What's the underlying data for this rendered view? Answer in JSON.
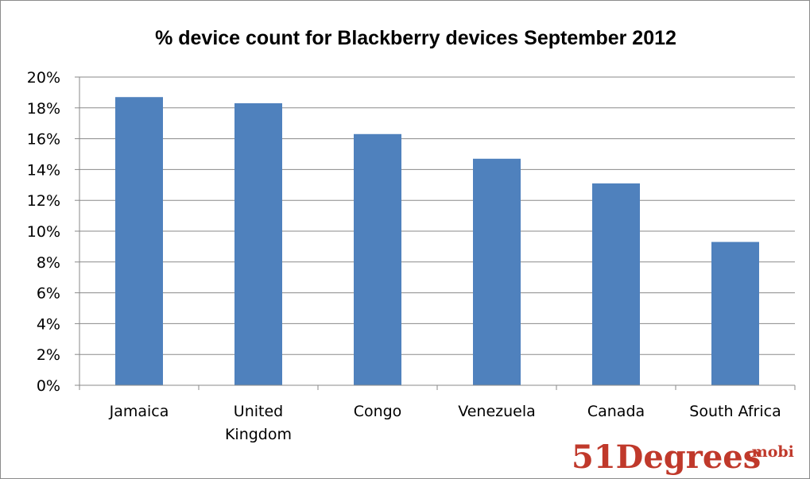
{
  "chart_data": {
    "type": "bar",
    "title": "%  device count for Blackberry devices September 2012",
    "categories": [
      "Jamaica",
      "United Kingdom",
      "Congo",
      "Venezuela",
      "Canada",
      "South Africa"
    ],
    "category_lines": [
      [
        "Jamaica"
      ],
      [
        "United",
        "Kingdom"
      ],
      [
        "Congo"
      ],
      [
        "Venezuela"
      ],
      [
        "Canada"
      ],
      [
        "South Africa"
      ]
    ],
    "values": [
      18.7,
      18.3,
      16.3,
      14.7,
      13.1,
      9.3
    ],
    "ylim": [
      0,
      20
    ],
    "yticks": [
      0,
      2,
      4,
      6,
      8,
      10,
      12,
      14,
      16,
      18,
      20
    ],
    "ytick_labels": [
      "0%",
      "2%",
      "4%",
      "6%",
      "8%",
      "10%",
      "12%",
      "14%",
      "16%",
      "18%",
      "20%"
    ],
    "xlabel": "",
    "ylabel": "",
    "grid": true,
    "legend": "none",
    "bar_color": "#4f81bd"
  },
  "logo": {
    "main": "51Degrees",
    "sup": ".mobi",
    "color": "#c0392b"
  }
}
